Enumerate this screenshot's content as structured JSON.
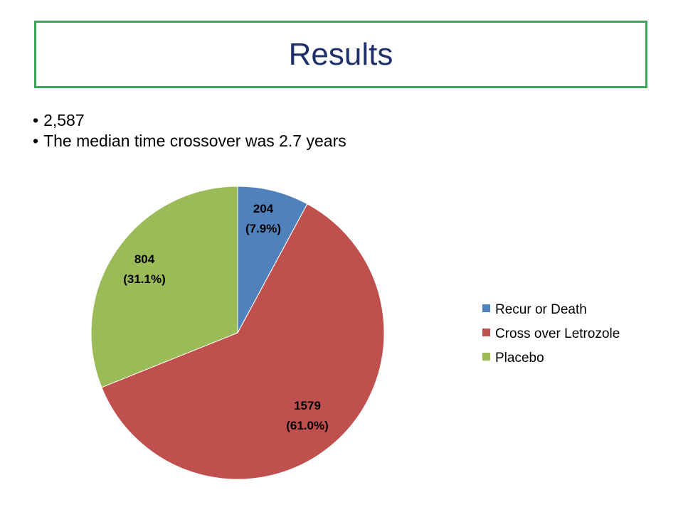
{
  "slide": {
    "title": "Results",
    "bullets": [
      "2,587",
      "The median time crossover was 2.7 years"
    ]
  },
  "chart_data": {
    "type": "pie",
    "categories": [
      "Recur or Death",
      "Cross over Letrozole",
      "Placebo"
    ],
    "values": [
      204,
      1579,
      804
    ],
    "percent_labels": [
      "(7.9%)",
      "(61.0%)",
      "(31.1%)"
    ],
    "colors": [
      "#4f81bd",
      "#c0504d",
      "#9bbb59"
    ],
    "start_angle": "12 o'clock, clockwise",
    "legend_position": "right"
  }
}
